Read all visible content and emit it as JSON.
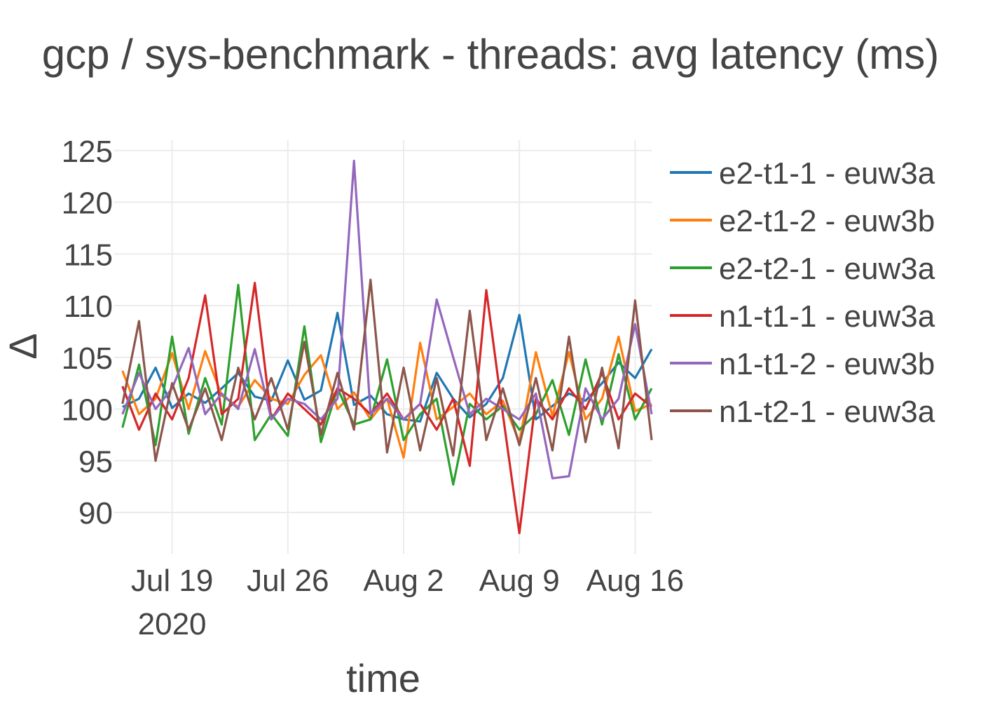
{
  "chart_data": {
    "type": "line",
    "title": "gcp / sys-benchmark - threads: avg latency (ms)",
    "xlabel": "time",
    "ylabel": "Δ",
    "xlim": [
      "2020-07-15T12:00",
      "2020-08-17T00:00"
    ],
    "ylim": [
      86,
      126
    ],
    "yticks": [
      90,
      95,
      100,
      105,
      110,
      115,
      120,
      125
    ],
    "xticks": [
      {
        "date": "2020-07-19",
        "label": "Jul 19",
        "sublabel": "2020"
      },
      {
        "date": "2020-07-26",
        "label": "Jul 26",
        "sublabel": ""
      },
      {
        "date": "2020-08-02",
        "label": "Aug 2",
        "sublabel": ""
      },
      {
        "date": "2020-08-09",
        "label": "Aug 9",
        "sublabel": ""
      },
      {
        "date": "2020-08-16",
        "label": "Aug 16",
        "sublabel": ""
      }
    ],
    "grid": true,
    "legend_position": "right",
    "series": [
      {
        "name": "e2-t1-1 - euw3a",
        "color": "#1f77b4",
        "points": [
          [
            "2020-07-16",
            100.2
          ],
          [
            "2020-07-17",
            101.0
          ],
          [
            "2020-07-18",
            104.0
          ],
          [
            "2020-07-19",
            100.1
          ],
          [
            "2020-07-20",
            101.5
          ],
          [
            "2020-07-21",
            100.6
          ],
          [
            "2020-07-22",
            102.0
          ],
          [
            "2020-07-23",
            103.5
          ],
          [
            "2020-07-24",
            101.2
          ],
          [
            "2020-07-25",
            100.8
          ],
          [
            "2020-07-26",
            104.7
          ],
          [
            "2020-07-27",
            100.9
          ],
          [
            "2020-07-28",
            101.8
          ],
          [
            "2020-07-29",
            109.3
          ],
          [
            "2020-07-30",
            100.4
          ],
          [
            "2020-07-31",
            101.3
          ],
          [
            "2020-08-01",
            99.5
          ],
          [
            "2020-08-02",
            99.0
          ],
          [
            "2020-08-03",
            98.8
          ],
          [
            "2020-08-04",
            103.5
          ],
          [
            "2020-08-05",
            101.0
          ],
          [
            "2020-08-06",
            99.2
          ],
          [
            "2020-08-07",
            100.5
          ],
          [
            "2020-08-08",
            103.0
          ],
          [
            "2020-08-09",
            109.1
          ],
          [
            "2020-08-10",
            99.0
          ],
          [
            "2020-08-11",
            100.3
          ],
          [
            "2020-08-12",
            101.5
          ],
          [
            "2020-08-13",
            100.8
          ],
          [
            "2020-08-14",
            102.5
          ],
          [
            "2020-08-15",
            104.5
          ],
          [
            "2020-08-16",
            103.0
          ],
          [
            "2020-08-17",
            105.8
          ]
        ]
      },
      {
        "name": "e2-t1-2 - euw3b",
        "color": "#ff7f0e",
        "points": [
          [
            "2020-07-16",
            103.7
          ],
          [
            "2020-07-17",
            99.5
          ],
          [
            "2020-07-18",
            101.0
          ],
          [
            "2020-07-19",
            105.4
          ],
          [
            "2020-07-20",
            100.0
          ],
          [
            "2020-07-21",
            105.6
          ],
          [
            "2020-07-22",
            101.3
          ],
          [
            "2020-07-23",
            100.2
          ],
          [
            "2020-07-24",
            102.8
          ],
          [
            "2020-07-25",
            101.0
          ],
          [
            "2020-07-26",
            100.5
          ],
          [
            "2020-07-27",
            103.3
          ],
          [
            "2020-07-28",
            105.2
          ],
          [
            "2020-07-29",
            100.0
          ],
          [
            "2020-07-30",
            101.6
          ],
          [
            "2020-07-31",
            99.0
          ],
          [
            "2020-08-01",
            101.0
          ],
          [
            "2020-08-02",
            95.3
          ],
          [
            "2020-08-03",
            106.4
          ],
          [
            "2020-08-04",
            99.0
          ],
          [
            "2020-08-05",
            100.2
          ],
          [
            "2020-08-06",
            101.5
          ],
          [
            "2020-08-07",
            99.5
          ],
          [
            "2020-08-08",
            100.8
          ],
          [
            "2020-08-09",
            96.8
          ],
          [
            "2020-08-10",
            105.5
          ],
          [
            "2020-08-11",
            99.3
          ],
          [
            "2020-08-12",
            105.5
          ],
          [
            "2020-08-13",
            99.0
          ],
          [
            "2020-08-14",
            101.0
          ],
          [
            "2020-08-15",
            107.0
          ],
          [
            "2020-08-16",
            99.8
          ],
          [
            "2020-08-17",
            100.5
          ]
        ]
      },
      {
        "name": "e2-t2-1 - euw3a",
        "color": "#2ca02c",
        "points": [
          [
            "2020-07-16",
            98.2
          ],
          [
            "2020-07-17",
            104.3
          ],
          [
            "2020-07-18",
            96.5
          ],
          [
            "2020-07-19",
            107.0
          ],
          [
            "2020-07-20",
            97.6
          ],
          [
            "2020-07-21",
            103.0
          ],
          [
            "2020-07-22",
            98.5
          ],
          [
            "2020-07-23",
            112.0
          ],
          [
            "2020-07-24",
            97.0
          ],
          [
            "2020-07-25",
            99.5
          ],
          [
            "2020-07-26",
            97.4
          ],
          [
            "2020-07-27",
            108.0
          ],
          [
            "2020-07-28",
            96.8
          ],
          [
            "2020-07-29",
            102.0
          ],
          [
            "2020-07-30",
            98.5
          ],
          [
            "2020-07-31",
            99.0
          ],
          [
            "2020-08-01",
            104.8
          ],
          [
            "2020-08-02",
            97.0
          ],
          [
            "2020-08-03",
            99.5
          ],
          [
            "2020-08-04",
            101.0
          ],
          [
            "2020-08-05",
            92.7
          ],
          [
            "2020-08-06",
            100.5
          ],
          [
            "2020-08-07",
            99.0
          ],
          [
            "2020-08-08",
            100.3
          ],
          [
            "2020-08-09",
            98.0
          ],
          [
            "2020-08-10",
            99.5
          ],
          [
            "2020-08-11",
            102.8
          ],
          [
            "2020-08-12",
            97.5
          ],
          [
            "2020-08-13",
            104.8
          ],
          [
            "2020-08-14",
            98.5
          ],
          [
            "2020-08-15",
            105.3
          ],
          [
            "2020-08-16",
            99.0
          ],
          [
            "2020-08-17",
            102.0
          ]
        ]
      },
      {
        "name": "n1-t1-1 - euw3a",
        "color": "#d62728",
        "points": [
          [
            "2020-07-16",
            102.2
          ],
          [
            "2020-07-17",
            98.0
          ],
          [
            "2020-07-18",
            101.5
          ],
          [
            "2020-07-19",
            99.0
          ],
          [
            "2020-07-20",
            103.0
          ],
          [
            "2020-07-21",
            111.0
          ],
          [
            "2020-07-22",
            99.5
          ],
          [
            "2020-07-23",
            101.0
          ],
          [
            "2020-07-24",
            112.2
          ],
          [
            "2020-07-25",
            99.0
          ],
          [
            "2020-07-26",
            101.5
          ],
          [
            "2020-07-27",
            100.0
          ],
          [
            "2020-07-28",
            98.5
          ],
          [
            "2020-07-29",
            102.0
          ],
          [
            "2020-07-30",
            101.0
          ],
          [
            "2020-07-31",
            99.5
          ],
          [
            "2020-08-01",
            101.5
          ],
          [
            "2020-08-02",
            99.0
          ],
          [
            "2020-08-03",
            100.5
          ],
          [
            "2020-08-04",
            98.0
          ],
          [
            "2020-08-05",
            101.0
          ],
          [
            "2020-08-06",
            94.5
          ],
          [
            "2020-08-07",
            111.5
          ],
          [
            "2020-08-08",
            99.5
          ],
          [
            "2020-08-09",
            88.0
          ],
          [
            "2020-08-10",
            101.0
          ],
          [
            "2020-08-11",
            99.0
          ],
          [
            "2020-08-12",
            102.0
          ],
          [
            "2020-08-13",
            100.0
          ],
          [
            "2020-08-14",
            103.5
          ],
          [
            "2020-08-15",
            99.0
          ],
          [
            "2020-08-16",
            101.5
          ],
          [
            "2020-08-17",
            100.2
          ]
        ]
      },
      {
        "name": "n1-t1-2 - euw3b",
        "color": "#9467bd",
        "points": [
          [
            "2020-07-16",
            99.5
          ],
          [
            "2020-07-17",
            103.5
          ],
          [
            "2020-07-18",
            100.0
          ],
          [
            "2020-07-19",
            102.0
          ],
          [
            "2020-07-20",
            105.9
          ],
          [
            "2020-07-21",
            99.5
          ],
          [
            "2020-07-22",
            101.5
          ],
          [
            "2020-07-23",
            100.0
          ],
          [
            "2020-07-24",
            105.8
          ],
          [
            "2020-07-25",
            99.0
          ],
          [
            "2020-07-26",
            101.0
          ],
          [
            "2020-07-27",
            100.5
          ],
          [
            "2020-07-28",
            99.0
          ],
          [
            "2020-07-29",
            101.0
          ],
          [
            "2020-07-30",
            124.0
          ],
          [
            "2020-07-31",
            99.5
          ],
          [
            "2020-08-01",
            101.0
          ],
          [
            "2020-08-02",
            99.0
          ],
          [
            "2020-08-03",
            100.5
          ],
          [
            "2020-08-04",
            110.6
          ],
          [
            "2020-08-05",
            105.0
          ],
          [
            "2020-08-06",
            99.5
          ],
          [
            "2020-08-07",
            101.0
          ],
          [
            "2020-08-08",
            100.0
          ],
          [
            "2020-08-09",
            99.0
          ],
          [
            "2020-08-10",
            101.5
          ],
          [
            "2020-08-11",
            93.3
          ],
          [
            "2020-08-12",
            93.5
          ],
          [
            "2020-08-13",
            102.0
          ],
          [
            "2020-08-14",
            99.0
          ],
          [
            "2020-08-15",
            101.0
          ],
          [
            "2020-08-16",
            108.2
          ],
          [
            "2020-08-17",
            99.5
          ]
        ]
      },
      {
        "name": "n1-t2-1 - euw3a",
        "color": "#8c564b",
        "points": [
          [
            "2020-07-16",
            100.5
          ],
          [
            "2020-07-17",
            108.5
          ],
          [
            "2020-07-18",
            95.0
          ],
          [
            "2020-07-19",
            102.5
          ],
          [
            "2020-07-20",
            98.0
          ],
          [
            "2020-07-21",
            102.0
          ],
          [
            "2020-07-22",
            97.0
          ],
          [
            "2020-07-23",
            104.0
          ],
          [
            "2020-07-24",
            99.0
          ],
          [
            "2020-07-25",
            103.0
          ],
          [
            "2020-07-26",
            98.0
          ],
          [
            "2020-07-27",
            106.5
          ],
          [
            "2020-07-28",
            97.5
          ],
          [
            "2020-07-29",
            103.5
          ],
          [
            "2020-07-30",
            98.0
          ],
          [
            "2020-07-31",
            112.5
          ],
          [
            "2020-08-01",
            95.8
          ],
          [
            "2020-08-02",
            104.0
          ],
          [
            "2020-08-03",
            96.0
          ],
          [
            "2020-08-04",
            103.0
          ],
          [
            "2020-08-05",
            95.5
          ],
          [
            "2020-08-06",
            109.5
          ],
          [
            "2020-08-07",
            97.0
          ],
          [
            "2020-08-08",
            102.0
          ],
          [
            "2020-08-09",
            96.5
          ],
          [
            "2020-08-10",
            103.0
          ],
          [
            "2020-08-11",
            96.0
          ],
          [
            "2020-08-12",
            107.0
          ],
          [
            "2020-08-13",
            96.8
          ],
          [
            "2020-08-14",
            104.0
          ],
          [
            "2020-08-15",
            96.2
          ],
          [
            "2020-08-16",
            110.5
          ],
          [
            "2020-08-17",
            97.0
          ]
        ]
      }
    ]
  }
}
